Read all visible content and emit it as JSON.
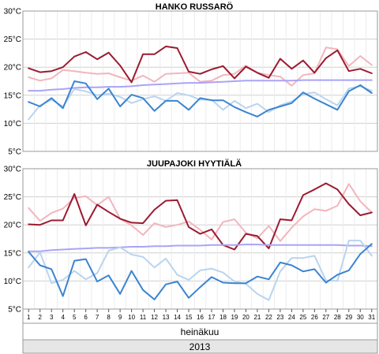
{
  "chart_data": [
    {
      "type": "line",
      "title": "HANKO RUSSARÖ",
      "y_unit": "°C",
      "ylim": [
        5,
        30
      ],
      "yticks": [
        "5°C",
        "10°C",
        "15°C",
        "20°C",
        "25°C",
        "30°C"
      ],
      "x": [
        "1",
        "2",
        "3",
        "4",
        "5",
        "6",
        "7",
        "8",
        "9",
        "10",
        "11",
        "12",
        "13",
        "14",
        "15",
        "16",
        "17",
        "18",
        "19",
        "20",
        "21",
        "22",
        "23",
        "24",
        "25",
        "26",
        "27",
        "28",
        "29",
        "30",
        "31"
      ],
      "grid": true,
      "series": [
        {
          "color": "#f2b6bd",
          "values": [
            18.2,
            17.6,
            18.0,
            19.5,
            19.3,
            19.0,
            18.8,
            18.9,
            18.2,
            17.6,
            18.5,
            17.4,
            18.8,
            18.9,
            19.0,
            17.4,
            17.6,
            18.6,
            18.8,
            20.3,
            19.0,
            18.6,
            18.3,
            16.7,
            18.6,
            18.9,
            23.5,
            23.2,
            20.2,
            22.0,
            20.4
          ]
        },
        {
          "color": "#9b1b30",
          "values": [
            19.8,
            19.1,
            19.3,
            20.0,
            21.9,
            22.7,
            21.4,
            22.6,
            20.3,
            17.3,
            22.3,
            22.3,
            23.7,
            23.4,
            19.2,
            18.8,
            19.6,
            20.2,
            18.0,
            20.1,
            19.0,
            18.1,
            21.5,
            19.7,
            21.2,
            19.0,
            21.6,
            23.0,
            19.3,
            19.7,
            18.9
          ]
        },
        {
          "color": "#aaa4f6",
          "values": [
            15.8,
            15.8,
            16.0,
            16.1,
            16.3,
            16.4,
            16.4,
            16.5,
            16.5,
            16.6,
            16.8,
            16.9,
            17.0,
            17.1,
            17.2,
            17.2,
            17.3,
            17.4,
            17.5,
            17.6,
            17.6,
            17.6,
            17.6,
            17.6,
            17.7,
            17.7,
            17.7,
            17.7,
            17.7,
            17.7,
            17.7
          ]
        },
        {
          "color": "#b9d4ee",
          "values": [
            10.7,
            13.2,
            14.2,
            13.0,
            16.1,
            15.7,
            15.0,
            15.3,
            14.7,
            13.6,
            14.3,
            14.8,
            14.0,
            15.4,
            15.0,
            14.2,
            14.2,
            12.4,
            14.0,
            12.7,
            13.5,
            12.0,
            13.2,
            13.9,
            15.2,
            15.5,
            14.3,
            13.2,
            16.2,
            16.6,
            15.8
          ]
        },
        {
          "color": "#3b84d0",
          "values": [
            13.8,
            13.0,
            14.5,
            12.7,
            17.5,
            17.1,
            14.3,
            16.2,
            13.0,
            15.1,
            14.5,
            12.2,
            14.0,
            14.0,
            12.4,
            14.5,
            14.1,
            14.1,
            12.9,
            12.0,
            11.2,
            12.4,
            13.0,
            13.6,
            15.5,
            14.4,
            13.4,
            12.4,
            15.7,
            16.8,
            15.4
          ]
        }
      ]
    },
    {
      "type": "line",
      "title": "JUUPAJOKI HYYTIÄLÄ",
      "y_unit": "°C",
      "ylim": [
        5,
        30
      ],
      "yticks": [
        "5°C",
        "10°C",
        "15°C",
        "20°C",
        "25°C",
        "30°C"
      ],
      "x": [
        "1",
        "2",
        "3",
        "4",
        "5",
        "6",
        "7",
        "8",
        "9",
        "10",
        "11",
        "12",
        "13",
        "14",
        "15",
        "16",
        "17",
        "18",
        "19",
        "20",
        "21",
        "22",
        "23",
        "24",
        "25",
        "26",
        "27",
        "28",
        "29",
        "30",
        "31"
      ],
      "grid": true,
      "series": [
        {
          "color": "#f2b6bd",
          "values": [
            23.0,
            20.7,
            22.1,
            22.9,
            24.8,
            25.1,
            23.5,
            25.0,
            21.1,
            19.9,
            18.2,
            20.3,
            19.6,
            20.0,
            20.6,
            19.1,
            17.4,
            20.5,
            21.0,
            18.6,
            17.6,
            19.8,
            17.1,
            19.5,
            21.5,
            22.8,
            22.5,
            23.4,
            27.3,
            24.2,
            22.2
          ]
        },
        {
          "color": "#9b1b30",
          "values": [
            20.1,
            20.0,
            20.8,
            20.8,
            25.5,
            19.9,
            23.6,
            22.3,
            21.1,
            20.4,
            20.3,
            22.7,
            24.3,
            24.4,
            19.6,
            18.4,
            19.2,
            16.4,
            15.6,
            18.4,
            18.0,
            15.8,
            21.0,
            20.8,
            25.3,
            26.3,
            27.4,
            26.3,
            23.7,
            21.7,
            22.2
          ]
        },
        {
          "color": "#aaa4f6",
          "values": [
            15.3,
            15.3,
            15.5,
            15.6,
            15.7,
            15.8,
            15.9,
            15.9,
            16.0,
            16.1,
            16.1,
            16.2,
            16.2,
            16.3,
            16.3,
            16.3,
            16.4,
            16.4,
            16.4,
            16.5,
            16.5,
            16.4,
            16.4,
            16.4,
            16.4,
            16.4,
            16.4,
            16.4,
            16.3,
            16.3,
            16.2
          ]
        },
        {
          "color": "#b9d4ee",
          "values": [
            12.4,
            15.1,
            9.6,
            10.2,
            11.8,
            10.3,
            11.4,
            15.4,
            16.0,
            14.7,
            14.3,
            12.4,
            14.0,
            11.1,
            10.2,
            11.9,
            12.2,
            11.5,
            9.9,
            9.5,
            7.7,
            6.6,
            11.7,
            14.1,
            14.1,
            14.5,
            10.1,
            10.0,
            17.2,
            17.2,
            14.5
          ]
        },
        {
          "color": "#3b84d0",
          "values": [
            15.2,
            12.8,
            12.1,
            7.3,
            13.6,
            13.9,
            9.9,
            11.0,
            7.7,
            11.8,
            8.4,
            6.7,
            9.4,
            9.9,
            7.0,
            8.9,
            10.7,
            9.7,
            9.6,
            9.6,
            10.8,
            10.3,
            13.3,
            12.8,
            11.7,
            12.1,
            9.7,
            11.1,
            11.9,
            14.8,
            16.6
          ]
        }
      ]
    }
  ],
  "footer": {
    "month": "heinäkuu",
    "year": "2013"
  }
}
